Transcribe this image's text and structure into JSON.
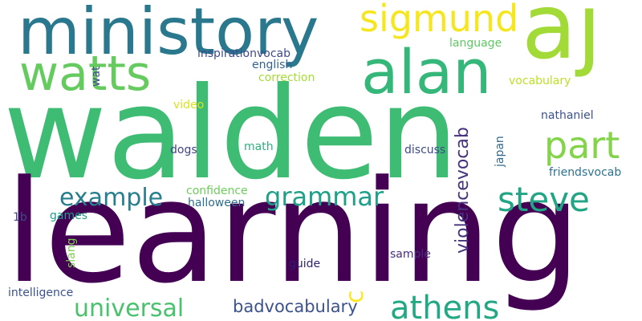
{
  "words": [
    {
      "text": "walden",
      "color": "#3fbc73",
      "vertical": false
    },
    {
      "text": "learning",
      "color": "#440154",
      "vertical": false
    },
    {
      "text": "aj",
      "color": "#a2da37",
      "vertical": false
    },
    {
      "text": "ministory",
      "color": "#2a788e",
      "vertical": false
    },
    {
      "text": "watts",
      "color": "#65cb5e",
      "vertical": false
    },
    {
      "text": "alan",
      "color": "#35b779",
      "vertical": false
    },
    {
      "text": "sigmund",
      "color": "#f6e620",
      "vertical": false
    },
    {
      "text": "part",
      "color": "#84d44b",
      "vertical": false
    },
    {
      "text": "steve",
      "color": "#21a585",
      "vertical": false
    },
    {
      "text": "athens",
      "color": "#23a884",
      "vertical": false
    },
    {
      "text": "grammar",
      "color": "#1fa088",
      "vertical": false
    },
    {
      "text": "example",
      "color": "#277f8e",
      "vertical": false
    },
    {
      "text": "universal",
      "color": "#4ac16d",
      "vertical": false
    },
    {
      "text": "badvocabulary",
      "color": "#3b528b",
      "vertical": false
    },
    {
      "text": "c",
      "color": "#fde725",
      "vertical": true
    },
    {
      "text": "violencevocab",
      "color": "#46327e",
      "vertical": true
    },
    {
      "text": "inspirationvocab",
      "color": "#3e4a89",
      "vertical": false
    },
    {
      "text": "english",
      "color": "#33638d",
      "vertical": false
    },
    {
      "text": "language",
      "color": "#5ec962",
      "vertical": false
    },
    {
      "text": "correction",
      "color": "#a5db36",
      "vertical": false
    },
    {
      "text": "vocabulary",
      "color": "#bddf26",
      "vertical": false
    },
    {
      "text": "wat",
      "color": "#3e4989",
      "vertical": true
    },
    {
      "text": "video",
      "color": "#dae319",
      "vertical": false
    },
    {
      "text": "nathaniel",
      "color": "#3b528b",
      "vertical": false
    },
    {
      "text": "dogs",
      "color": "#414487",
      "vertical": false
    },
    {
      "text": "math",
      "color": "#2db27d",
      "vertical": false
    },
    {
      "text": "discuss",
      "color": "#3e4a89",
      "vertical": false
    },
    {
      "text": "japan",
      "color": "#31688e",
      "vertical": true
    },
    {
      "text": "friendsvocab",
      "color": "#2c728e",
      "vertical": false
    },
    {
      "text": "confidence",
      "color": "#6ccd5a",
      "vertical": false
    },
    {
      "text": "halloween",
      "color": "#2e6e8e",
      "vertical": false
    },
    {
      "text": "1b",
      "color": "#3e4989",
      "vertical": false
    },
    {
      "text": "games",
      "color": "#1f9e89",
      "vertical": false
    },
    {
      "text": "slang",
      "color": "#7ad151",
      "vertical": true
    },
    {
      "text": "guide",
      "color": "#2d1f6e",
      "vertical": false
    },
    {
      "text": "sample",
      "color": "#472d7b",
      "vertical": false
    },
    {
      "text": "intelligence",
      "color": "#3b528b",
      "vertical": false
    }
  ]
}
